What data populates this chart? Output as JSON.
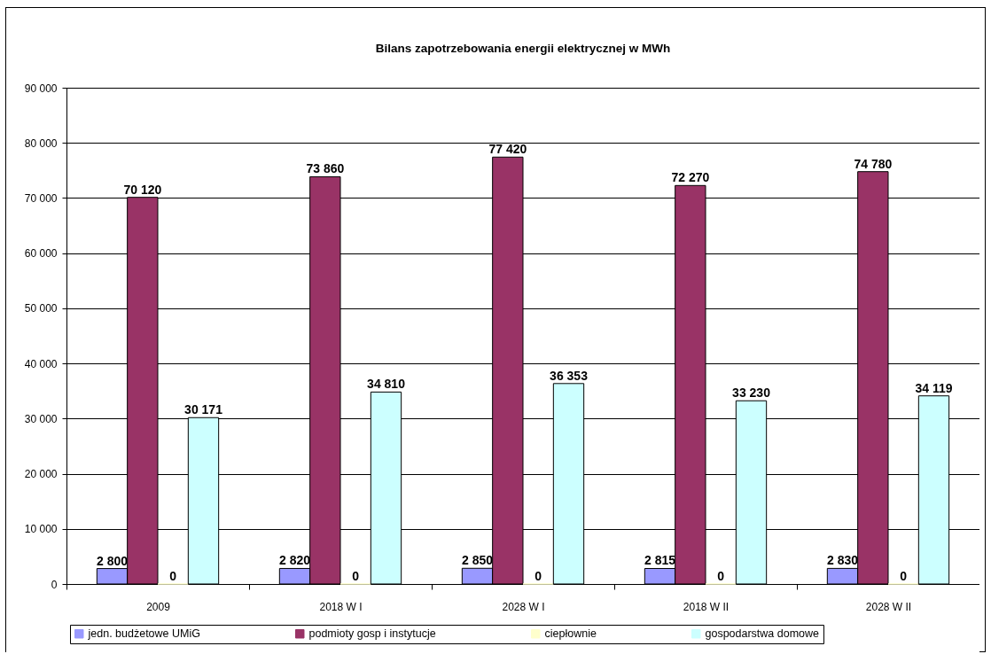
{
  "chart_data": {
    "type": "bar",
    "title": "Bilans zapotrzebowania energii elektrycznej w MWh",
    "categories": [
      "2009",
      "2018 W I",
      "2028 W I",
      "2018 W II",
      "2028 W II"
    ],
    "series": [
      {
        "name": "jedn. budżetowe UMiG",
        "color": "#9999ff",
        "values": [
          2800,
          2820,
          2850,
          2815,
          2830
        ],
        "value_labels": [
          "2 800",
          "2 820",
          "2 850",
          "2 815",
          "2 830"
        ]
      },
      {
        "name": "podmioty gosp i instytucje",
        "color": "#993366",
        "values": [
          70120,
          73860,
          77420,
          72270,
          74780
        ],
        "value_labels": [
          "70 120",
          "73 860",
          "77 420",
          "72 270",
          "74 780"
        ]
      },
      {
        "name": "ciepłownie",
        "color": "#ffffcc",
        "values": [
          0,
          0,
          0,
          0,
          0
        ],
        "value_labels": [
          "0",
          "0",
          "0",
          "0",
          "0"
        ]
      },
      {
        "name": "gospodarstwa domowe",
        "color": "#ccffff",
        "values": [
          30171,
          34810,
          36353,
          33230,
          34119
        ],
        "value_labels": [
          "30 171",
          "34 810",
          "36 353",
          "33 230",
          "34 119"
        ]
      }
    ],
    "ylim": [
      0,
      90000
    ],
    "yticks": [
      {
        "value": 0,
        "label": "0"
      },
      {
        "value": 10000,
        "label": "10 000"
      },
      {
        "value": 20000,
        "label": "20 000"
      },
      {
        "value": 30000,
        "label": "30 000"
      },
      {
        "value": 40000,
        "label": "40 000"
      },
      {
        "value": 50000,
        "label": "50 000"
      },
      {
        "value": 60000,
        "label": "60 000"
      },
      {
        "value": 70000,
        "label": "70 000"
      },
      {
        "value": 80000,
        "label": "80 000"
      },
      {
        "value": 90000,
        "label": "90 000"
      }
    ],
    "grid": "y",
    "legend": "bottom"
  }
}
